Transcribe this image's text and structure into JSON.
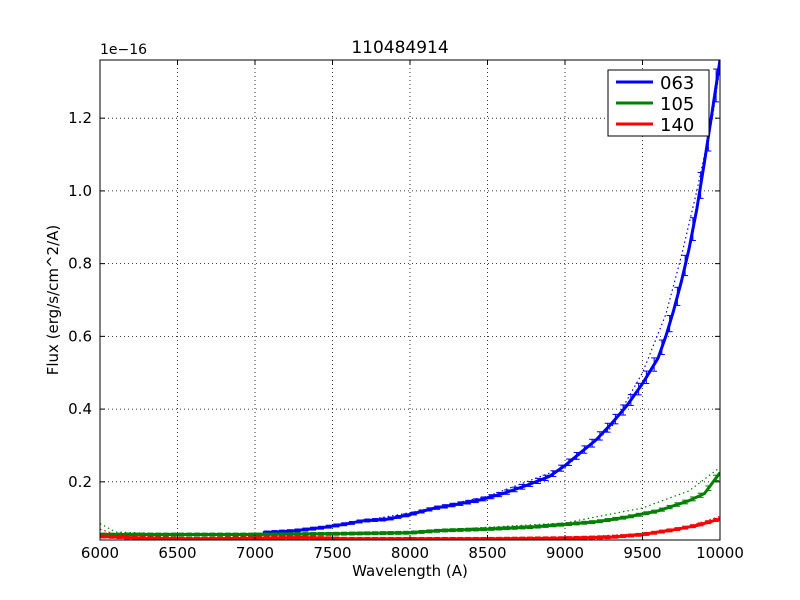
{
  "chart_data": {
    "type": "line",
    "title": "110484914",
    "xlabel": "Wavelength (A)",
    "ylabel": "Flux (erg/s/cm^2/A)",
    "y_offset_label": "1e−16",
    "xlim": [
      6000,
      10000
    ],
    "ylim": [
      0.04,
      1.36
    ],
    "xticks": [
      6000,
      6500,
      7000,
      7500,
      8000,
      8500,
      9000,
      9500,
      10000
    ],
    "yticks": [
      0.2,
      0.4,
      0.6,
      0.8,
      1.0,
      1.2
    ],
    "xtick_labels": [
      "6000",
      "6500",
      "7000",
      "7500",
      "8000",
      "8500",
      "9000",
      "9500",
      "10000"
    ],
    "ytick_labels": [
      "0.2",
      "0.4",
      "0.6",
      "0.8",
      "1.0",
      "1.2"
    ],
    "grid": true,
    "legend_position": "top-right",
    "series": [
      {
        "name": "063",
        "color": "#0000ff",
        "x": [
          7050,
          7250,
          7450,
          7600,
          7700,
          7850,
          8000,
          8150,
          8300,
          8450,
          8600,
          8750,
          8900,
          9000,
          9100,
          9200,
          9300,
          9400,
          9500,
          9600,
          9650,
          9700,
          9750,
          9800,
          9850,
          9900,
          9950,
          10000
        ],
        "y": [
          0.06,
          0.065,
          0.075,
          0.085,
          0.093,
          0.097,
          0.11,
          0.127,
          0.138,
          0.15,
          0.168,
          0.19,
          0.215,
          0.245,
          0.28,
          0.315,
          0.36,
          0.41,
          0.47,
          0.54,
          0.6,
          0.67,
          0.75,
          0.84,
          0.95,
          1.08,
          1.22,
          1.36
        ],
        "model_x": [
          7050,
          7500,
          8000,
          8500,
          9000,
          9300,
          9500,
          9650,
          9750,
          9850,
          9950,
          10000
        ],
        "model_y": [
          0.06,
          0.078,
          0.115,
          0.16,
          0.24,
          0.35,
          0.5,
          0.66,
          0.82,
          1.0,
          1.2,
          1.34
        ]
      },
      {
        "name": "105",
        "color": "#008000",
        "x": [
          6000,
          6500,
          7000,
          7500,
          8000,
          8200,
          8500,
          8800,
          9000,
          9200,
          9400,
          9600,
          9800,
          9900,
          10000
        ],
        "y": [
          0.055,
          0.055,
          0.055,
          0.057,
          0.06,
          0.066,
          0.07,
          0.076,
          0.083,
          0.09,
          0.103,
          0.12,
          0.148,
          0.168,
          0.225
        ],
        "model_x": [
          6000,
          6100,
          6500,
          7000,
          8000,
          9000,
          9500,
          9800,
          10000
        ],
        "model_y": [
          0.085,
          0.062,
          0.056,
          0.057,
          0.063,
          0.087,
          0.128,
          0.175,
          0.24
        ]
      },
      {
        "name": "140",
        "color": "#ff0000",
        "x": [
          6000,
          6300,
          6600,
          7000,
          7300,
          7600,
          8000,
          8500,
          9000,
          9300,
          9500,
          9700,
          9850,
          10000
        ],
        "y": [
          0.05,
          0.045,
          0.043,
          0.045,
          0.047,
          0.043,
          0.043,
          0.043,
          0.045,
          0.048,
          0.055,
          0.068,
          0.08,
          0.098
        ],
        "model_x": [
          6000,
          6100,
          6500,
          7000,
          8000,
          9000,
          9500,
          9800,
          10000
        ],
        "model_y": [
          0.07,
          0.055,
          0.044,
          0.043,
          0.043,
          0.046,
          0.058,
          0.078,
          0.105
        ]
      }
    ]
  }
}
